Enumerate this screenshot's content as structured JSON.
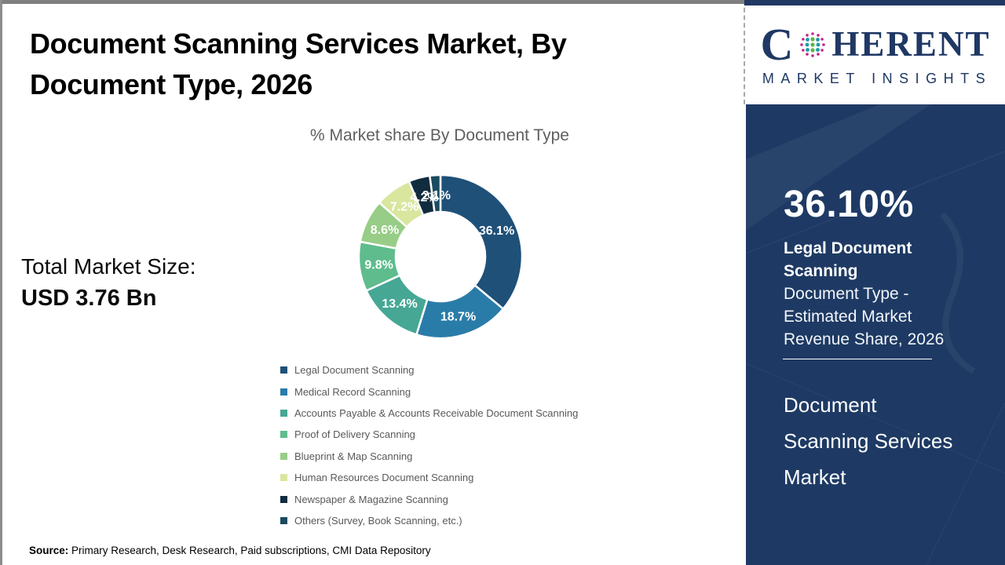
{
  "page": {
    "title_line1": "Document Scanning Services Market, By",
    "title_line2": "Document Type, 2026",
    "total_market_label": "Total Market Size:",
    "total_market_value": "USD 3.76 Bn",
    "source_label": "Source:",
    "source_text": " Primary Research, Desk Research, Paid subscriptions, CMI Data Repository"
  },
  "chart_data": {
    "type": "pie",
    "donut": true,
    "title": "% Market share By Document Type",
    "legend_position": "bottom-left",
    "categories": [
      "Legal Document Scanning",
      "Medical Record Scanning",
      "Accounts Payable & Accounts Receivable Document Scanning",
      "Proof of Delivery Scanning",
      "Blueprint & Map Scanning",
      "Human Resources Document Scanning",
      "Newspaper & Magazine Scanning",
      "Others (Survey, Book Scanning, etc.)"
    ],
    "values": [
      36.1,
      18.7,
      13.4,
      9.8,
      8.6,
      7.2,
      4.2,
      2.1
    ],
    "labels": [
      "36.1%",
      "18.7%",
      "13.4%",
      "9.8%",
      "8.6%",
      "7.2%",
      "4.2%",
      "2.1%"
    ],
    "colors": [
      "#1F5078",
      "#2A7CA8",
      "#46A794",
      "#5FBC8D",
      "#97CD86",
      "#D9E69E",
      "#102C3E",
      "#1B4B5F"
    ],
    "slice_label_color": "#FFFFFF",
    "start_angle_deg": 0,
    "direction": "clockwise"
  },
  "sidebar": {
    "logo": {
      "c": "C",
      "rest": "HERENT",
      "tagline": "MARKET INSIGHTS",
      "navy": "#1F3864",
      "globe_colors": {
        "teal": "#1C9AA8",
        "green": "#5CB54A",
        "magenta": "#C2268A"
      }
    },
    "panel_color": "#1E3A64",
    "highlight_value": "36.10%",
    "highlight_title": "Legal Document Scanning",
    "highlight_lines": [
      "Document Type -",
      "Estimated Market",
      "Revenue Share, 2026"
    ],
    "panel_title_lines": [
      "Document",
      "Scanning Services",
      "Market"
    ]
  }
}
